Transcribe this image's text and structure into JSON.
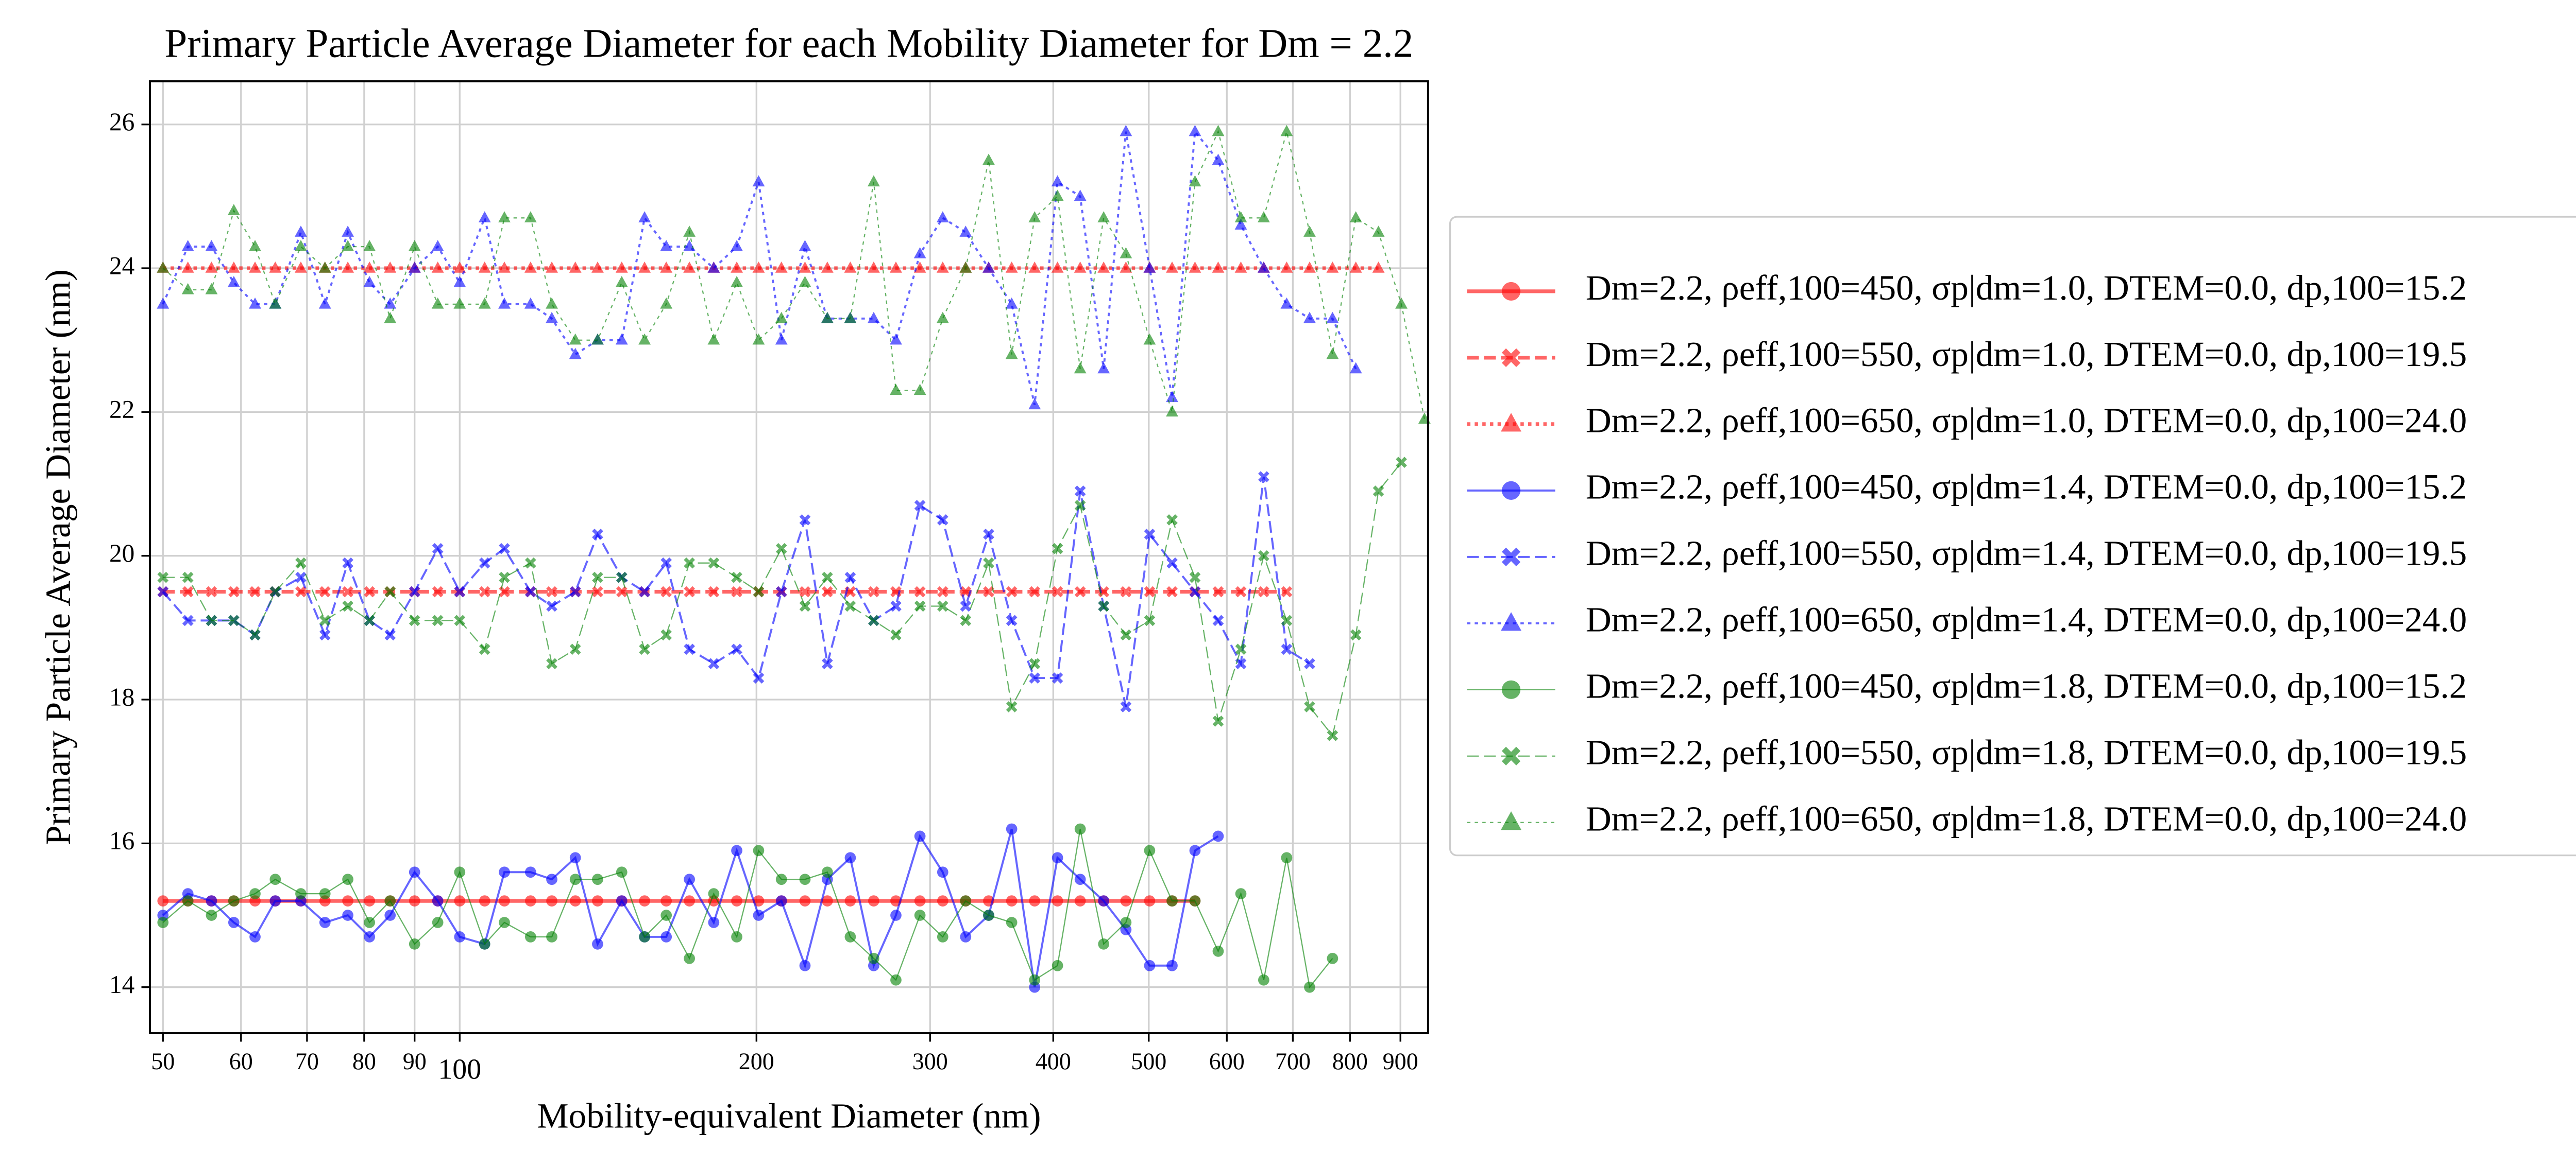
{
  "chart_data": {
    "type": "line",
    "title": "Primary Particle Average Diameter for each Mobility Diameter for Dm = 2.2",
    "x_label": "Mobility-equivalent Diameter (nm)",
    "y_label": "Primary Particle Average Diameter (nm)",
    "xscale": "log",
    "grid": true,
    "legend": "right",
    "xlim": [
      48.5,
      960
    ],
    "ylim": [
      13.36,
      26.6
    ],
    "xticks": [
      50,
      60,
      70,
      80,
      90,
      100,
      200,
      300,
      400,
      500,
      600,
      700,
      800,
      900
    ],
    "yticks": [
      14,
      16,
      18,
      20,
      22,
      24,
      26
    ],
    "x": [
      50,
      53,
      56,
      59,
      62,
      65,
      69,
      73,
      77,
      81,
      85,
      90,
      95,
      100,
      106,
      111,
      118,
      124,
      131,
      138,
      146,
      154,
      162,
      171,
      181,
      191,
      201,
      212,
      224,
      236,
      249,
      263,
      277,
      293,
      309,
      326,
      344,
      363,
      383,
      404,
      426,
      450,
      474,
      501,
      528,
      557,
      588,
      620,
      654,
      690,
      728,
      768,
      811,
      855,
      902,
      952
    ],
    "series": [
      {
        "name": "Dm=2.2, ρeff,100=450, σp|dm=1.0, DTEM=0.0, dp,100=15.2",
        "color": "#ff0000",
        "linestyle": "solid",
        "marker": "o",
        "linewidth": 2.2,
        "values": [
          15.2,
          15.2,
          15.2,
          15.2,
          15.2,
          15.2,
          15.2,
          15.2,
          15.2,
          15.2,
          15.2,
          15.2,
          15.2,
          15.2,
          15.2,
          15.2,
          15.2,
          15.2,
          15.2,
          15.2,
          15.2,
          15.2,
          15.2,
          15.2,
          15.2,
          15.2,
          15.2,
          15.2,
          15.2,
          15.2,
          15.2,
          15.2,
          15.2,
          15.2,
          15.2,
          15.2,
          15.2,
          15.2,
          15.2,
          15.2,
          15.2,
          15.2,
          15.2,
          15.2,
          15.2,
          15.2,
          null,
          null,
          null,
          null,
          null,
          null,
          null,
          null,
          null,
          null
        ]
      },
      {
        "name": "Dm=2.2, ρeff,100=550, σp|dm=1.0, DTEM=0.0, dp,100=19.5",
        "color": "#ff0000",
        "linestyle": "dashed",
        "marker": "X",
        "linewidth": 2.2,
        "values": [
          19.5,
          19.5,
          19.5,
          19.5,
          19.5,
          19.5,
          19.5,
          19.5,
          19.5,
          19.5,
          19.5,
          19.5,
          19.5,
          19.5,
          19.5,
          19.5,
          19.5,
          19.5,
          19.5,
          19.5,
          19.5,
          19.5,
          19.5,
          19.5,
          19.5,
          19.5,
          19.5,
          19.5,
          19.5,
          19.5,
          19.5,
          19.5,
          19.5,
          19.5,
          19.5,
          19.5,
          19.5,
          19.5,
          19.5,
          19.5,
          19.5,
          19.5,
          19.5,
          19.5,
          19.5,
          19.5,
          19.5,
          19.5,
          19.5,
          19.5,
          null,
          null,
          null,
          null,
          null,
          null
        ]
      },
      {
        "name": "Dm=2.2, ρeff,100=650, σp|dm=1.0, DTEM=0.0, dp,100=24.0",
        "color": "#ff0000",
        "linestyle": "dotted",
        "marker": "^",
        "linewidth": 2.2,
        "values": [
          24.0,
          24.0,
          24.0,
          24.0,
          24.0,
          24.0,
          24.0,
          24.0,
          24.0,
          24.0,
          24.0,
          24.0,
          24.0,
          24.0,
          24.0,
          24.0,
          24.0,
          24.0,
          24.0,
          24.0,
          24.0,
          24.0,
          24.0,
          24.0,
          24.0,
          24.0,
          24.0,
          24.0,
          24.0,
          24.0,
          24.0,
          24.0,
          24.0,
          24.0,
          24.0,
          24.0,
          24.0,
          24.0,
          24.0,
          24.0,
          24.0,
          24.0,
          24.0,
          24.0,
          24.0,
          24.0,
          24.0,
          24.0,
          24.0,
          24.0,
          24.0,
          24.0,
          24.0,
          24.0,
          null,
          null
        ]
      },
      {
        "name": "Dm=2.2, ρeff,100=450, σp|dm=1.4, DTEM=0.0, dp,100=15.2",
        "color": "#0000ff",
        "linestyle": "solid",
        "marker": "o",
        "linewidth": 1.2,
        "values": [
          15.0,
          15.3,
          15.2,
          14.9,
          14.7,
          15.2,
          15.2,
          14.9,
          15.0,
          14.7,
          15.0,
          15.6,
          15.2,
          14.7,
          14.6,
          15.6,
          15.6,
          15.5,
          15.8,
          14.6,
          15.2,
          14.7,
          14.7,
          15.5,
          14.9,
          15.9,
          15.0,
          15.2,
          14.3,
          15.5,
          15.8,
          14.3,
          15.0,
          16.1,
          15.6,
          14.7,
          15.0,
          16.2,
          14.0,
          15.8,
          15.5,
          15.2,
          14.8,
          14.3,
          14.3,
          15.9,
          16.1,
          null,
          null,
          null,
          null,
          null,
          null,
          null,
          null,
          null
        ]
      },
      {
        "name": "Dm=2.2, ρeff,100=550, σp|dm=1.4, DTEM=0.0, dp,100=19.5",
        "color": "#0000ff",
        "linestyle": "dashed",
        "marker": "X",
        "linewidth": 1.2,
        "values": [
          19.5,
          19.1,
          19.1,
          19.1,
          18.9,
          19.5,
          19.7,
          18.9,
          19.9,
          19.1,
          18.9,
          19.5,
          20.1,
          19.5,
          19.9,
          20.1,
          19.5,
          19.3,
          19.5,
          20.3,
          19.7,
          19.5,
          19.9,
          18.7,
          18.5,
          18.7,
          18.3,
          19.5,
          20.5,
          18.5,
          19.7,
          19.1,
          19.3,
          20.7,
          20.5,
          19.3,
          20.3,
          19.1,
          18.3,
          18.3,
          20.9,
          19.3,
          17.9,
          20.3,
          19.9,
          19.5,
          19.1,
          18.5,
          21.1,
          18.7,
          18.5,
          null,
          null,
          null,
          null,
          null
        ]
      },
      {
        "name": "Dm=2.2, ρeff,100=650, σp|dm=1.4, DTEM=0.0, dp,100=24.0",
        "color": "#0000ff",
        "linestyle": "dotted",
        "marker": "^",
        "linewidth": 1.2,
        "values": [
          23.5,
          24.3,
          24.3,
          23.8,
          23.5,
          23.5,
          24.5,
          23.5,
          24.5,
          23.8,
          23.5,
          24.0,
          24.3,
          23.8,
          24.7,
          23.5,
          23.5,
          23.3,
          22.8,
          23.0,
          23.0,
          24.7,
          24.3,
          24.3,
          24.0,
          24.3,
          25.2,
          23.0,
          24.3,
          23.3,
          23.3,
          23.3,
          23.0,
          24.2,
          24.7,
          24.5,
          24.0,
          23.5,
          22.1,
          25.2,
          25.0,
          22.6,
          25.9,
          24.0,
          22.2,
          25.9,
          25.5,
          24.6,
          24.0,
          23.5,
          23.3,
          23.3,
          22.6,
          null,
          null,
          null
        ]
      },
      {
        "name": "Dm=2.2, ρeff,100=450, σp|dm=1.8, DTEM=0.0, dp,100=15.2",
        "color": "#008000",
        "linestyle": "solid",
        "marker": "o",
        "linewidth": 0.7,
        "values": [
          14.9,
          15.2,
          15.0,
          15.2,
          15.3,
          15.5,
          15.3,
          15.3,
          15.5,
          14.9,
          15.2,
          14.6,
          14.9,
          15.6,
          14.6,
          14.9,
          14.7,
          14.7,
          15.5,
          15.5,
          15.6,
          14.7,
          15.0,
          14.4,
          15.3,
          14.7,
          15.9,
          15.5,
          15.5,
          15.6,
          14.7,
          14.4,
          14.1,
          15.0,
          14.7,
          15.2,
          15.0,
          14.9,
          14.1,
          14.3,
          16.2,
          14.6,
          14.9,
          15.9,
          15.2,
          15.2,
          14.5,
          15.3,
          14.1,
          15.8,
          14.0,
          14.4,
          null,
          null,
          null,
          null
        ]
      },
      {
        "name": "Dm=2.2, ρeff,100=550, σp|dm=1.8, DTEM=0.0, dp,100=19.5",
        "color": "#008000",
        "linestyle": "dashed",
        "marker": "X",
        "linewidth": 0.7,
        "values": [
          19.7,
          19.7,
          19.1,
          19.1,
          18.9,
          19.5,
          19.9,
          19.1,
          19.3,
          19.1,
          19.5,
          19.1,
          19.1,
          19.1,
          18.7,
          19.7,
          19.9,
          18.5,
          18.7,
          19.7,
          19.7,
          18.7,
          18.9,
          19.9,
          19.9,
          19.7,
          19.5,
          20.1,
          19.3,
          19.7,
          19.3,
          19.1,
          18.9,
          19.3,
          19.3,
          19.1,
          19.9,
          17.9,
          18.5,
          20.1,
          20.7,
          19.3,
          18.9,
          19.1,
          20.5,
          19.7,
          17.7,
          18.7,
          20.0,
          19.1,
          17.9,
          17.5,
          18.9,
          20.9,
          21.3,
          null
        ]
      },
      {
        "name": "Dm=2.2, ρeff,100=650, σp|dm=1.8, DTEM=0.0, dp,100=24.0",
        "color": "#008000",
        "linestyle": "dotted",
        "marker": "^",
        "linewidth": 0.7,
        "values": [
          24.0,
          23.7,
          23.7,
          24.8,
          24.3,
          23.5,
          24.3,
          24.0,
          24.3,
          24.3,
          23.3,
          24.3,
          23.5,
          23.5,
          23.5,
          24.7,
          24.7,
          23.5,
          23.0,
          23.0,
          23.8,
          23.0,
          23.5,
          24.5,
          23.0,
          23.8,
          23.0,
          23.3,
          23.8,
          23.3,
          23.3,
          25.2,
          22.3,
          22.3,
          23.3,
          24.0,
          25.5,
          22.8,
          24.7,
          25.0,
          22.6,
          24.7,
          24.2,
          23.0,
          22.0,
          25.2,
          25.9,
          24.7,
          24.7,
          25.9,
          24.5,
          22.8,
          24.7,
          24.5,
          23.5,
          21.9
        ]
      }
    ]
  }
}
